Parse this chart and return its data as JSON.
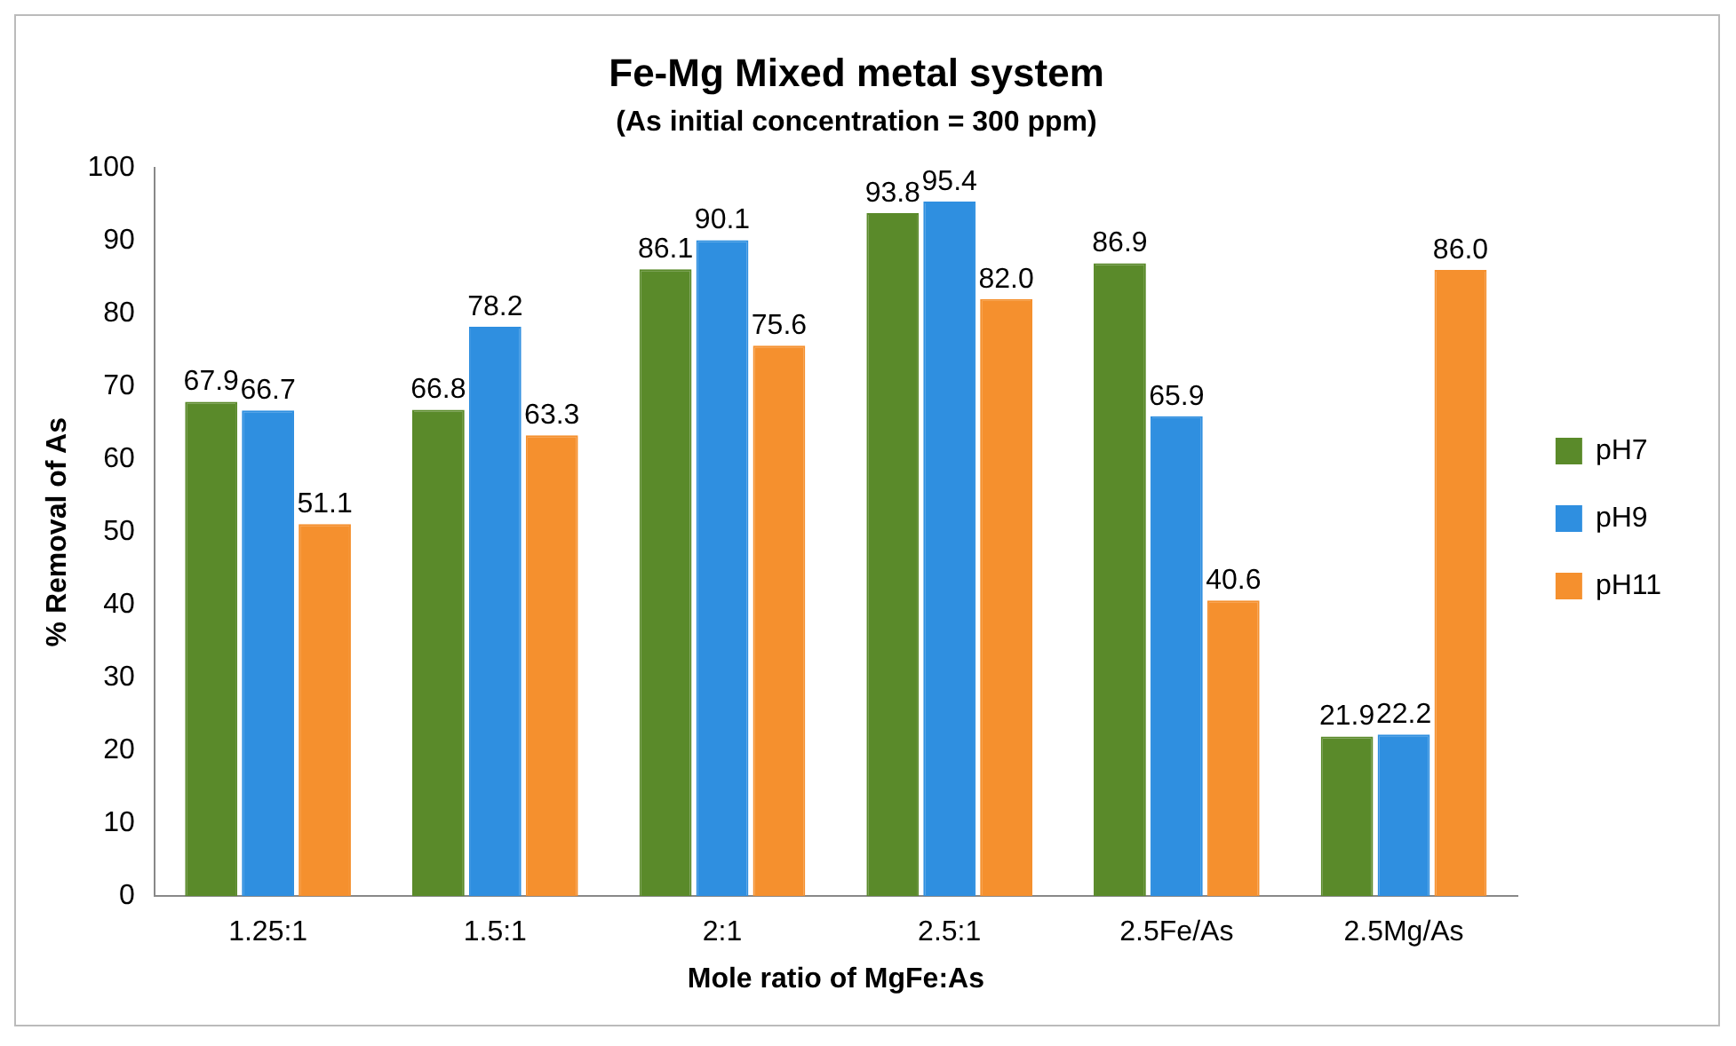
{
  "chart_data": {
    "type": "bar",
    "title": "Fe-Mg Mixed metal system",
    "subtitle": "(As initial concentration = 300 ppm)",
    "xlabel": "Mole ratio of MgFe:As",
    "ylabel": "% Removal of As",
    "categories": [
      "1.25:1",
      "1.5:1",
      "2:1",
      "2.5:1",
      "2.5Fe/As",
      "2.5Mg/As"
    ],
    "series": [
      {
        "name": "pH7",
        "color": "#5a8a2a",
        "values": [
          67.9,
          66.8,
          86.1,
          93.8,
          86.9,
          21.9
        ],
        "value_labels": [
          "67.9",
          "66.8",
          "86.1",
          "93.8",
          "86.9",
          "21.9"
        ]
      },
      {
        "name": "pH9",
        "color": "#2f8fe0",
        "values": [
          66.7,
          78.2,
          90.1,
          95.4,
          65.9,
          22.2
        ],
        "value_labels": [
          "66.7",
          "78.2",
          "90.1",
          "95.4",
          "65.9",
          "22.2"
        ]
      },
      {
        "name": "pH11",
        "color": "#f5902e",
        "values": [
          51.1,
          63.3,
          75.6,
          82.0,
          40.6,
          86.0
        ],
        "value_labels": [
          "51.1",
          "63.3",
          "75.6",
          "82.0",
          "40.6",
          "86.0"
        ]
      }
    ],
    "ylim": [
      0,
      100
    ],
    "yticks": [
      0,
      10,
      20,
      30,
      40,
      50,
      60,
      70,
      80,
      90,
      100
    ],
    "grid": false,
    "legend": "right"
  }
}
